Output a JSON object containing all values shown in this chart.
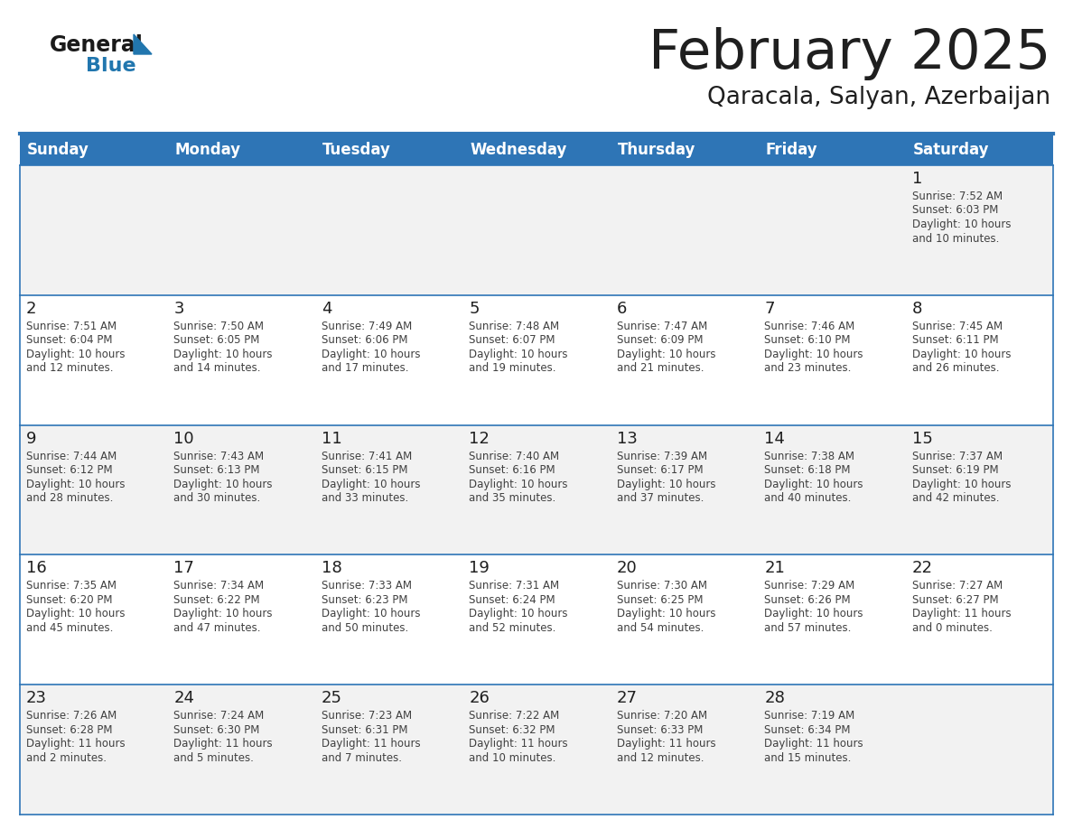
{
  "title": "February 2025",
  "subtitle": "Qaracala, Salyan, Azerbaijan",
  "header_bg": "#2E75B6",
  "header_text_color": "#FFFFFF",
  "cell_bg_white": "#FFFFFF",
  "cell_bg_light": "#F2F2F2",
  "border_color": "#2E75B6",
  "top_border_color": "#2E75B6",
  "day_headers": [
    "Sunday",
    "Monday",
    "Tuesday",
    "Wednesday",
    "Thursday",
    "Friday",
    "Saturday"
  ],
  "title_color": "#1F1F1F",
  "subtitle_color": "#1F1F1F",
  "number_color": "#1F1F1F",
  "text_color": "#404040",
  "logo_general_color": "#1A1A1A",
  "logo_blue_color": "#2176AE",
  "days": [
    {
      "day": 1,
      "col": 6,
      "row": 0,
      "sunrise": "7:52 AM",
      "sunset": "6:03 PM",
      "daylight_h": "10 hours",
      "daylight_m": "and 10 minutes."
    },
    {
      "day": 2,
      "col": 0,
      "row": 1,
      "sunrise": "7:51 AM",
      "sunset": "6:04 PM",
      "daylight_h": "10 hours",
      "daylight_m": "and 12 minutes."
    },
    {
      "day": 3,
      "col": 1,
      "row": 1,
      "sunrise": "7:50 AM",
      "sunset": "6:05 PM",
      "daylight_h": "10 hours",
      "daylight_m": "and 14 minutes."
    },
    {
      "day": 4,
      "col": 2,
      "row": 1,
      "sunrise": "7:49 AM",
      "sunset": "6:06 PM",
      "daylight_h": "10 hours",
      "daylight_m": "and 17 minutes."
    },
    {
      "day": 5,
      "col": 3,
      "row": 1,
      "sunrise": "7:48 AM",
      "sunset": "6:07 PM",
      "daylight_h": "10 hours",
      "daylight_m": "and 19 minutes."
    },
    {
      "day": 6,
      "col": 4,
      "row": 1,
      "sunrise": "7:47 AM",
      "sunset": "6:09 PM",
      "daylight_h": "10 hours",
      "daylight_m": "and 21 minutes."
    },
    {
      "day": 7,
      "col": 5,
      "row": 1,
      "sunrise": "7:46 AM",
      "sunset": "6:10 PM",
      "daylight_h": "10 hours",
      "daylight_m": "and 23 minutes."
    },
    {
      "day": 8,
      "col": 6,
      "row": 1,
      "sunrise": "7:45 AM",
      "sunset": "6:11 PM",
      "daylight_h": "10 hours",
      "daylight_m": "and 26 minutes."
    },
    {
      "day": 9,
      "col": 0,
      "row": 2,
      "sunrise": "7:44 AM",
      "sunset": "6:12 PM",
      "daylight_h": "10 hours",
      "daylight_m": "and 28 minutes."
    },
    {
      "day": 10,
      "col": 1,
      "row": 2,
      "sunrise": "7:43 AM",
      "sunset": "6:13 PM",
      "daylight_h": "10 hours",
      "daylight_m": "and 30 minutes."
    },
    {
      "day": 11,
      "col": 2,
      "row": 2,
      "sunrise": "7:41 AM",
      "sunset": "6:15 PM",
      "daylight_h": "10 hours",
      "daylight_m": "and 33 minutes."
    },
    {
      "day": 12,
      "col": 3,
      "row": 2,
      "sunrise": "7:40 AM",
      "sunset": "6:16 PM",
      "daylight_h": "10 hours",
      "daylight_m": "and 35 minutes."
    },
    {
      "day": 13,
      "col": 4,
      "row": 2,
      "sunrise": "7:39 AM",
      "sunset": "6:17 PM",
      "daylight_h": "10 hours",
      "daylight_m": "and 37 minutes."
    },
    {
      "day": 14,
      "col": 5,
      "row": 2,
      "sunrise": "7:38 AM",
      "sunset": "6:18 PM",
      "daylight_h": "10 hours",
      "daylight_m": "and 40 minutes."
    },
    {
      "day": 15,
      "col": 6,
      "row": 2,
      "sunrise": "7:37 AM",
      "sunset": "6:19 PM",
      "daylight_h": "10 hours",
      "daylight_m": "and 42 minutes."
    },
    {
      "day": 16,
      "col": 0,
      "row": 3,
      "sunrise": "7:35 AM",
      "sunset": "6:20 PM",
      "daylight_h": "10 hours",
      "daylight_m": "and 45 minutes."
    },
    {
      "day": 17,
      "col": 1,
      "row": 3,
      "sunrise": "7:34 AM",
      "sunset": "6:22 PM",
      "daylight_h": "10 hours",
      "daylight_m": "and 47 minutes."
    },
    {
      "day": 18,
      "col": 2,
      "row": 3,
      "sunrise": "7:33 AM",
      "sunset": "6:23 PM",
      "daylight_h": "10 hours",
      "daylight_m": "and 50 minutes."
    },
    {
      "day": 19,
      "col": 3,
      "row": 3,
      "sunrise": "7:31 AM",
      "sunset": "6:24 PM",
      "daylight_h": "10 hours",
      "daylight_m": "and 52 minutes."
    },
    {
      "day": 20,
      "col": 4,
      "row": 3,
      "sunrise": "7:30 AM",
      "sunset": "6:25 PM",
      "daylight_h": "10 hours",
      "daylight_m": "and 54 minutes."
    },
    {
      "day": 21,
      "col": 5,
      "row": 3,
      "sunrise": "7:29 AM",
      "sunset": "6:26 PM",
      "daylight_h": "10 hours",
      "daylight_m": "and 57 minutes."
    },
    {
      "day": 22,
      "col": 6,
      "row": 3,
      "sunrise": "7:27 AM",
      "sunset": "6:27 PM",
      "daylight_h": "11 hours",
      "daylight_m": "and 0 minutes."
    },
    {
      "day": 23,
      "col": 0,
      "row": 4,
      "sunrise": "7:26 AM",
      "sunset": "6:28 PM",
      "daylight_h": "11 hours",
      "daylight_m": "and 2 minutes."
    },
    {
      "day": 24,
      "col": 1,
      "row": 4,
      "sunrise": "7:24 AM",
      "sunset": "6:30 PM",
      "daylight_h": "11 hours",
      "daylight_m": "and 5 minutes."
    },
    {
      "day": 25,
      "col": 2,
      "row": 4,
      "sunrise": "7:23 AM",
      "sunset": "6:31 PM",
      "daylight_h": "11 hours",
      "daylight_m": "and 7 minutes."
    },
    {
      "day": 26,
      "col": 3,
      "row": 4,
      "sunrise": "7:22 AM",
      "sunset": "6:32 PM",
      "daylight_h": "11 hours",
      "daylight_m": "and 10 minutes."
    },
    {
      "day": 27,
      "col": 4,
      "row": 4,
      "sunrise": "7:20 AM",
      "sunset": "6:33 PM",
      "daylight_h": "11 hours",
      "daylight_m": "and 12 minutes."
    },
    {
      "day": 28,
      "col": 5,
      "row": 4,
      "sunrise": "7:19 AM",
      "sunset": "6:34 PM",
      "daylight_h": "11 hours",
      "daylight_m": "and 15 minutes."
    }
  ]
}
